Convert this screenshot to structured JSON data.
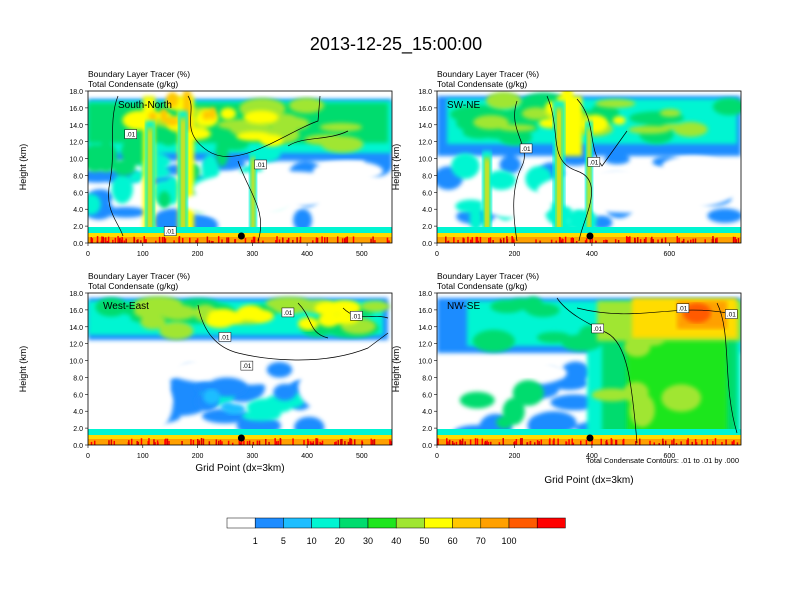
{
  "figure": {
    "title": "2013-12-25_15:00:00",
    "footnote": "Total Condensate Contours: .01 to .01 by .000"
  },
  "colors": {
    "palette": [
      "#ffffff",
      "#1e8cff",
      "#1ebeff",
      "#00f5d2",
      "#00dc6e",
      "#1ee61e",
      "#a0e632",
      "#ffff00",
      "#ffdc00",
      "#ffc800",
      "#ffa000",
      "#ff5a00",
      "#ff0000",
      "#dc0000"
    ],
    "contour": "#000000",
    "marker": "#000000"
  },
  "colorbar": {
    "labels": [
      "1",
      "5",
      "10",
      "20",
      "30",
      "40",
      "50",
      "60",
      "70",
      "100"
    ],
    "colors": [
      "#ffffff",
      "#1e8cff",
      "#1ebeff",
      "#00f5d2",
      "#00dc6e",
      "#1ee61e",
      "#a0e632",
      "#ffff00",
      "#ffc800",
      "#ffa000",
      "#ff5a00",
      "#ff0000"
    ]
  },
  "chart_data": [
    {
      "type": "heatmap",
      "panel": "South-North",
      "title_lines": [
        "Boundary Layer Tracer    (%)",
        "Total Condensate    (g/kg)"
      ],
      "panel_label": "South-North",
      "ylabel": "Height (km)",
      "xlabel": "",
      "xlim": [
        0,
        555
      ],
      "ylim": [
        0,
        18
      ],
      "xticks": [
        "0",
        "100",
        "200",
        "300",
        "400",
        "500"
      ],
      "xtick_values": [
        0,
        100,
        200,
        300,
        400,
        500
      ],
      "yticks": [
        "0.0",
        "2.0",
        "4.0",
        "6.0",
        "8.0",
        "10.0",
        "12.0",
        "14.0",
        "16.0",
        "18.0"
      ],
      "marker_x": 280,
      "contour_labels": [
        {
          "text": ".01",
          "x": 78,
          "y": 12.9
        },
        {
          "text": ".01",
          "x": 315,
          "y": 9.3
        },
        {
          "text": ".01",
          "x": 150,
          "y": 1.4
        }
      ]
    },
    {
      "type": "heatmap",
      "panel": "SW-NE",
      "title_lines": [
        "Boundary Layer Tracer    (%)",
        "Total Condensate    (g/kg)"
      ],
      "panel_label": "SW-NE",
      "ylabel": "Height (km)",
      "xlabel": "",
      "xlim": [
        0,
        785
      ],
      "ylim": [
        0,
        18
      ],
      "xticks": [
        "0",
        "200",
        "400",
        "600"
      ],
      "xtick_values": [
        0,
        200,
        400,
        600
      ],
      "yticks": [
        "0.0",
        "2.0",
        "4.0",
        "6.0",
        "8.0",
        "10.0",
        "12.0",
        "14.0",
        "16.0",
        "18.0"
      ],
      "marker_x": 395,
      "contour_labels": [
        {
          "text": ".01",
          "x": 230,
          "y": 11.2
        },
        {
          "text": ".01",
          "x": 405,
          "y": 9.6
        }
      ]
    },
    {
      "type": "heatmap",
      "panel": "West-East",
      "title_lines": [
        "Boundary Layer Tracer    (%)",
        "Total Condensate    (g/kg)"
      ],
      "panel_label": "West-East",
      "ylabel": "Height (km)",
      "xlabel": "Grid Point (dx=3km)",
      "xlim": [
        0,
        555
      ],
      "ylim": [
        0,
        18
      ],
      "xticks": [
        "0",
        "100",
        "200",
        "300",
        "400",
        "500"
      ],
      "xtick_values": [
        0,
        100,
        200,
        300,
        400,
        500
      ],
      "yticks": [
        "0.0",
        "2.0",
        "4.0",
        "6.0",
        "8.0",
        "10.0",
        "12.0",
        "14.0",
        "16.0",
        "18.0"
      ],
      "marker_x": 280,
      "contour_labels": [
        {
          "text": ".01",
          "x": 365,
          "y": 15.7
        },
        {
          "text": ".01",
          "x": 490,
          "y": 15.3
        },
        {
          "text": ".01",
          "x": 250,
          "y": 12.8
        },
        {
          "text": ".01",
          "x": 290,
          "y": 9.4
        }
      ]
    },
    {
      "type": "heatmap",
      "panel": "NW-SE",
      "title_lines": [
        "Boundary Layer Tracer    (%)",
        "Total Condensate    (g/kg)"
      ],
      "panel_label": "NW-SE",
      "ylabel": "Height (km)",
      "xlabel": "Grid Point (dx=3km)",
      "xlim": [
        0,
        785
      ],
      "ylim": [
        0,
        18
      ],
      "xticks": [
        "0",
        "200",
        "400",
        "600"
      ],
      "xtick_values": [
        0,
        200,
        400,
        600
      ],
      "yticks": [
        "0.0",
        "2.0",
        "4.0",
        "6.0",
        "8.0",
        "10.0",
        "12.0",
        "14.0",
        "16.0",
        "18.0"
      ],
      "marker_x": 395,
      "contour_labels": [
        {
          "text": ".01",
          "x": 415,
          "y": 13.8
        },
        {
          "text": ".01",
          "x": 635,
          "y": 16.2
        },
        {
          "text": ".01",
          "x": 760,
          "y": 15.5
        }
      ]
    }
  ]
}
